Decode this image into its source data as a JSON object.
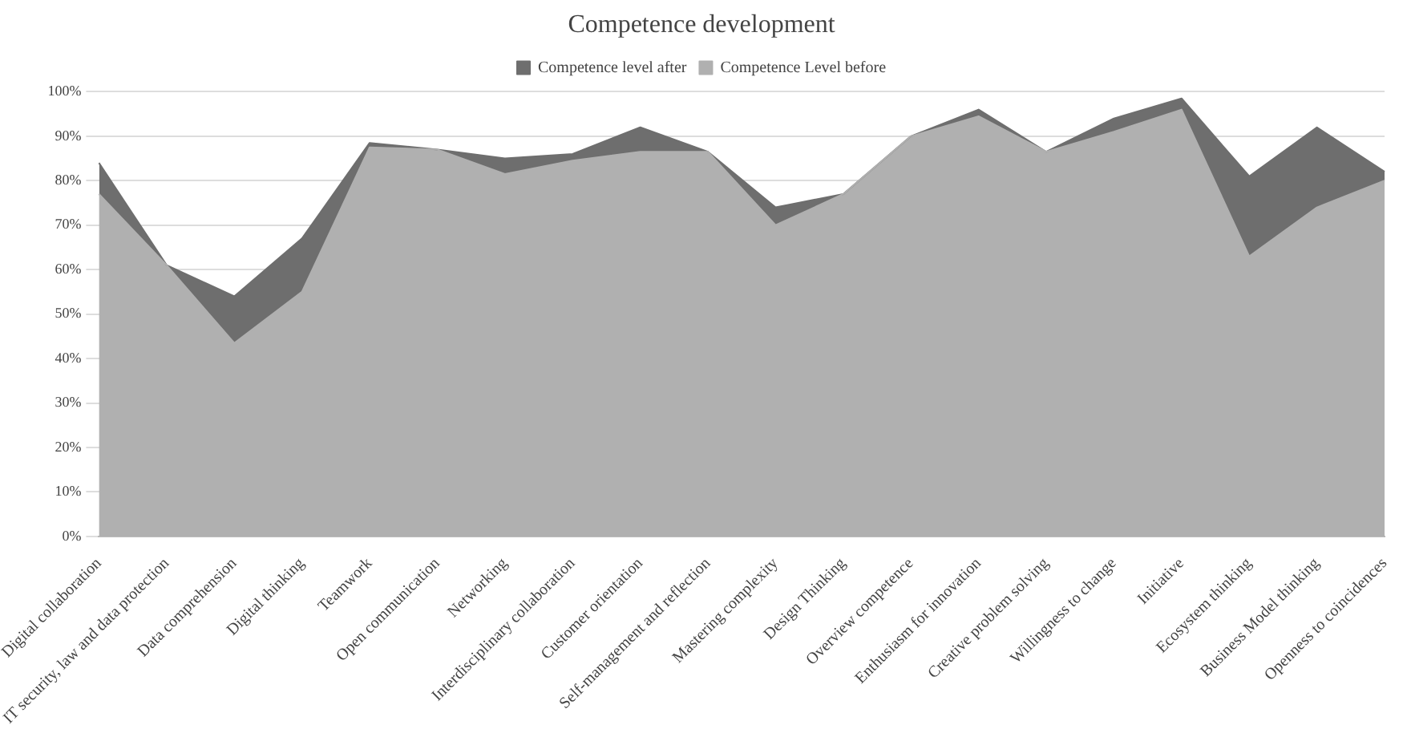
{
  "chart_data": {
    "type": "area",
    "title": "Competence development",
    "categories": [
      "Digital collaboration",
      "IT security, law and data protection",
      "Data comprehension",
      "Digital thinking",
      "Teamwork",
      "Open communication",
      "Networking",
      "Interdisciplinary collaboration",
      "Customer orientation",
      "Self-management and reflection",
      "Mastering complexity",
      "Design Thinking",
      "Overview competence",
      "Enthusiasm for innovation",
      "Creative problem solving",
      "Willingness to change",
      "Initiative",
      "Ecosystem thinking",
      "Business Model thinking",
      "Openness to coincidences"
    ],
    "series": [
      {
        "name": "Competence level after",
        "color": "#6e6e6e",
        "values": [
          84,
          61,
          54,
          67,
          88.5,
          87,
          85,
          86,
          92,
          86.5,
          74,
          77,
          90,
          96,
          86.5,
          94,
          98.5,
          81,
          92,
          82
        ]
      },
      {
        "name": "Competence Level before",
        "color": "#b0b0b0",
        "values": [
          77,
          61,
          43.5,
          55,
          87.5,
          87,
          81.5,
          84.5,
          86.5,
          86.5,
          70,
          77,
          90,
          94.5,
          86.5,
          91,
          96,
          63,
          74,
          80
        ]
      }
    ],
    "ylim": [
      0,
      100
    ],
    "yticks": [
      {
        "value": 0,
        "label": "0%"
      },
      {
        "value": 10,
        "label": "10%"
      },
      {
        "value": 20,
        "label": "20%"
      },
      {
        "value": 30,
        "label": "30%"
      },
      {
        "value": 40,
        "label": "40%"
      },
      {
        "value": 50,
        "label": "50%"
      },
      {
        "value": 60,
        "label": "60%"
      },
      {
        "value": 70,
        "label": "70%"
      },
      {
        "value": 80,
        "label": "80%"
      },
      {
        "value": 90,
        "label": "90%"
      },
      {
        "value": 100,
        "label": "100%"
      }
    ],
    "grid": "y",
    "legend": "top"
  }
}
